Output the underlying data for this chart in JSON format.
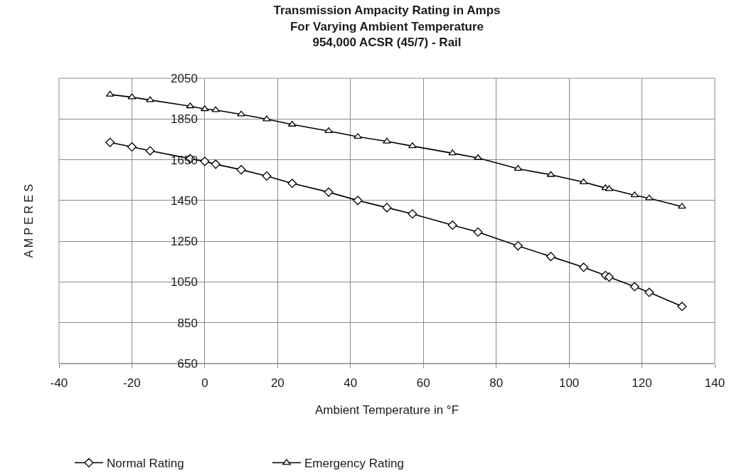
{
  "chart_data": {
    "type": "line",
    "title": "Transmission Ampacity Rating in Amps\nFor Varying Ambient Temperature\n954,000 ACSR (45/7) - Rail",
    "xlabel": "Ambient Temperature in °F",
    "ylabel": "A M P E R E S",
    "x": [
      -26,
      -20,
      -15,
      -4,
      0,
      3,
      10,
      17,
      24,
      34,
      42,
      50,
      57,
      68,
      75,
      86,
      95,
      104,
      110,
      111,
      118,
      122,
      131
    ],
    "series": [
      {
        "name": "Normal Rating",
        "color": "#000000",
        "marker": "diamond",
        "values": [
          1735,
          1713,
          1694,
          1655,
          1642,
          1628,
          1601,
          1570,
          1534,
          1491,
          1450,
          1415,
          1384,
          1329,
          1295,
          1227,
          1175,
          1122,
          1082,
          1074,
          1027,
          999,
          930
        ]
      },
      {
        "name": "Emergency Rating",
        "color": "#000000",
        "marker": "triangle",
        "values": [
          1970,
          1957,
          1943,
          1913,
          1899,
          1894,
          1873,
          1849,
          1823,
          1791,
          1763,
          1740,
          1717,
          1682,
          1659,
          1606,
          1576,
          1540,
          1511,
          1507,
          1476,
          1461,
          1420
        ]
      }
    ],
    "xlim": [
      -40,
      140
    ],
    "xticks": [
      -40,
      -20,
      0,
      20,
      40,
      60,
      80,
      100,
      120,
      140
    ],
    "ylim": [
      650,
      2050
    ],
    "yticks": [
      650,
      850,
      1050,
      1250,
      1450,
      1650,
      1850,
      2050
    ],
    "grid": true,
    "legend": "bottom left",
    "line_style": "solid"
  }
}
